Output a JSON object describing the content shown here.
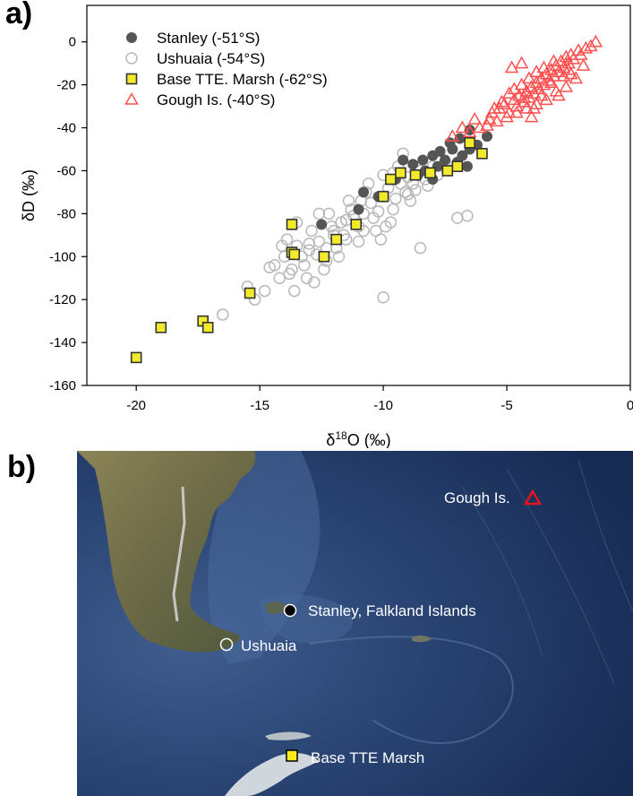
{
  "panels": {
    "a": "a)",
    "b": "b)"
  },
  "chart_data": {
    "type": "scatter",
    "title": "",
    "xlabel": "δ18O (‰)",
    "xlabel_parts": {
      "delta": "δ",
      "sup": "18",
      "rest": "O (‰)"
    },
    "ylabel": "δD (‰)",
    "xlim": [
      -22,
      0
    ],
    "ylim": [
      -160,
      17
    ],
    "xticks": [
      -20,
      -15,
      -10,
      -5,
      0
    ],
    "yticks": [
      -160,
      -140,
      -120,
      -100,
      -80,
      -60,
      -40,
      -20,
      0
    ],
    "grid": false,
    "legend_position": "top-left",
    "series": [
      {
        "name": "Stanley (-51°S)",
        "marker": "filled-circle",
        "color": "#555555",
        "points": [
          [
            -6.5,
            -41
          ],
          [
            -6.9,
            -45
          ],
          [
            -6.2,
            -48
          ],
          [
            -5.8,
            -44
          ],
          [
            -7.2,
            -50
          ],
          [
            -6.8,
            -53
          ],
          [
            -7.5,
            -55
          ],
          [
            -8.0,
            -53
          ],
          [
            -8.4,
            -55
          ],
          [
            -8.8,
            -57
          ],
          [
            -9.2,
            -55
          ],
          [
            -7.8,
            -58
          ],
          [
            -8.3,
            -60
          ],
          [
            -7.0,
            -56
          ],
          [
            -6.5,
            -50
          ],
          [
            -7.3,
            -47
          ],
          [
            -8.6,
            -62
          ],
          [
            -9.5,
            -64
          ],
          [
            -10.2,
            -72
          ],
          [
            -10.8,
            -70
          ],
          [
            -12.5,
            -85
          ],
          [
            -11.0,
            -78
          ],
          [
            -7.7,
            -51
          ],
          [
            -6.6,
            -58
          ],
          [
            -8.0,
            -64
          ]
        ]
      },
      {
        "name": "Ushuaia (-54°S)",
        "marker": "open-circle",
        "color": "#b8b8b8",
        "points": [
          [
            -16.5,
            -127
          ],
          [
            -15.2,
            -120
          ],
          [
            -15.5,
            -114
          ],
          [
            -14.6,
            -105
          ],
          [
            -14.2,
            -110
          ],
          [
            -13.8,
            -108
          ],
          [
            -14.0,
            -100
          ],
          [
            -13.5,
            -95
          ],
          [
            -13.9,
            -92
          ],
          [
            -13.2,
            -104
          ],
          [
            -13.0,
            -97
          ],
          [
            -12.6,
            -93
          ],
          [
            -12.9,
            -88
          ],
          [
            -12.3,
            -96
          ],
          [
            -12.0,
            -90
          ],
          [
            -11.7,
            -84
          ],
          [
            -12.2,
            -80
          ],
          [
            -11.5,
            -83
          ],
          [
            -11.3,
            -78
          ],
          [
            -11.0,
            -86
          ],
          [
            -10.8,
            -80
          ],
          [
            -10.5,
            -75
          ],
          [
            -10.2,
            -79
          ],
          [
            -10.7,
            -70
          ],
          [
            -10.0,
            -72
          ],
          [
            -9.8,
            -68
          ],
          [
            -9.5,
            -73
          ],
          [
            -9.3,
            -66
          ],
          [
            -9.1,
            -70
          ],
          [
            -9.0,
            -63
          ],
          [
            -8.8,
            -66
          ],
          [
            -8.5,
            -60
          ],
          [
            -8.3,
            -64
          ],
          [
            -8.0,
            -58
          ],
          [
            -7.8,
            -62
          ],
          [
            -7.5,
            -56
          ],
          [
            -9.2,
            -52
          ],
          [
            -10.0,
            -62
          ],
          [
            -9.6,
            -78
          ],
          [
            -10.3,
            -88
          ],
          [
            -11.8,
            -100
          ],
          [
            -12.8,
            -112
          ],
          [
            -13.6,
            -116
          ],
          [
            -14.8,
            -116
          ],
          [
            -10.0,
            -119
          ],
          [
            -7.0,
            -82
          ],
          [
            -6.6,
            -81
          ],
          [
            -8.5,
            -96
          ],
          [
            -11.0,
            -93
          ],
          [
            -12.6,
            -80
          ],
          [
            -13.5,
            -84
          ],
          [
            -14.1,
            -95
          ],
          [
            -11.4,
            -74
          ],
          [
            -9.4,
            -58
          ],
          [
            -10.6,
            -66
          ],
          [
            -8.9,
            -74
          ],
          [
            -9.7,
            -84
          ],
          [
            -12.4,
            -106
          ],
          [
            -13.1,
            -110
          ],
          [
            -12.0,
            -88
          ],
          [
            -10.9,
            -74
          ],
          [
            -9.9,
            -86
          ],
          [
            -11.9,
            -96
          ],
          [
            -14.4,
            -104
          ],
          [
            -8.7,
            -69
          ],
          [
            -10.4,
            -82
          ],
          [
            -12.1,
            -86
          ],
          [
            -13.3,
            -100
          ],
          [
            -11.6,
            -90
          ],
          [
            -9.0,
            -71
          ],
          [
            -10.1,
            -92
          ],
          [
            -12.7,
            -99
          ],
          [
            -11.2,
            -81
          ],
          [
            -13.0,
            -94
          ],
          [
            -8.2,
            -67
          ],
          [
            -9.6,
            -61
          ],
          [
            -11.5,
            -92
          ],
          [
            -12.3,
            -102
          ],
          [
            -10.8,
            -88
          ],
          [
            -13.7,
            -106
          ]
        ]
      },
      {
        "name": "Base TTE. Marsh (-62°S)",
        "marker": "square",
        "color": "#f2ea2a",
        "points": [
          [
            -20.0,
            -147
          ],
          [
            -19.0,
            -133
          ],
          [
            -17.3,
            -130
          ],
          [
            -17.1,
            -133
          ],
          [
            -15.4,
            -117
          ],
          [
            -13.7,
            -98
          ],
          [
            -13.7,
            -85
          ],
          [
            -13.6,
            -99
          ],
          [
            -12.4,
            -100
          ],
          [
            -11.9,
            -92
          ],
          [
            -11.1,
            -85
          ],
          [
            -10.0,
            -72
          ],
          [
            -9.7,
            -64
          ],
          [
            -9.3,
            -61
          ],
          [
            -8.7,
            -62
          ],
          [
            -8.1,
            -61
          ],
          [
            -7.4,
            -60
          ],
          [
            -7.0,
            -58
          ],
          [
            -6.5,
            -47
          ],
          [
            -6.0,
            -52
          ]
        ]
      },
      {
        "name": "Gough Is. (-40°S)",
        "marker": "open-triangle",
        "color": "#ff5050",
        "points": [
          [
            -7.2,
            -44
          ],
          [
            -6.8,
            -40
          ],
          [
            -6.5,
            -42
          ],
          [
            -5.7,
            -36
          ],
          [
            -5.6,
            -33
          ],
          [
            -5.3,
            -31
          ],
          [
            -5.1,
            -29
          ],
          [
            -4.9,
            -33
          ],
          [
            -4.7,
            -27
          ],
          [
            -4.6,
            -30
          ],
          [
            -4.5,
            -25
          ],
          [
            -4.3,
            -28
          ],
          [
            -4.2,
            -23
          ],
          [
            -4.1,
            -26
          ],
          [
            -4.0,
            -21
          ],
          [
            -3.9,
            -24
          ],
          [
            -3.8,
            -19
          ],
          [
            -3.7,
            -22
          ],
          [
            -3.6,
            -17
          ],
          [
            -3.5,
            -20
          ],
          [
            -3.4,
            -15
          ],
          [
            -3.3,
            -18
          ],
          [
            -3.2,
            -13
          ],
          [
            -3.1,
            -16
          ],
          [
            -3.0,
            -11
          ],
          [
            -2.9,
            -14
          ],
          [
            -2.8,
            -9
          ],
          [
            -2.7,
            -12
          ],
          [
            -2.6,
            -7
          ],
          [
            -2.5,
            -10
          ],
          [
            -2.4,
            -6
          ],
          [
            -2.3,
            -8
          ],
          [
            -2.1,
            -4
          ],
          [
            -2.0,
            -6
          ],
          [
            -1.8,
            -3
          ],
          [
            -1.6,
            -2
          ],
          [
            -1.4,
            0
          ],
          [
            -4.8,
            -12
          ],
          [
            -4.4,
            -10
          ],
          [
            -2.2,
            -17
          ],
          [
            -2.6,
            -21
          ],
          [
            -3.0,
            -23
          ],
          [
            -3.4,
            -27
          ],
          [
            -3.8,
            -29
          ],
          [
            -4.2,
            -31
          ],
          [
            -4.6,
            -33
          ],
          [
            -5.0,
            -35
          ],
          [
            -5.4,
            -37
          ],
          [
            -5.8,
            -39
          ],
          [
            -6.1,
            -40
          ],
          [
            -6.3,
            -36
          ],
          [
            -4.9,
            -24
          ],
          [
            -3.5,
            -12
          ],
          [
            -2.9,
            -25
          ],
          [
            -3.9,
            -31
          ],
          [
            -4.4,
            -20
          ],
          [
            -3.2,
            -19
          ],
          [
            -2.4,
            -15
          ],
          [
            -1.9,
            -11
          ],
          [
            -4.1,
            -17
          ],
          [
            -4.7,
            -22
          ],
          [
            -5.2,
            -28
          ],
          [
            -3.6,
            -25
          ],
          [
            -2.7,
            -16
          ],
          [
            -3.8,
            -14
          ],
          [
            -4.3,
            -26
          ],
          [
            -5.5,
            -31
          ],
          [
            -3.1,
            -9
          ],
          [
            -2.5,
            -13
          ],
          [
            -4.0,
            -35
          ]
        ]
      }
    ]
  },
  "map": {
    "sites": [
      {
        "name": "Gough Is.",
        "marker": "open-triangle",
        "color": "#e8141c"
      },
      {
        "name": "Stanley, Falkland Islands",
        "marker": "filled-circle",
        "color": "#000000"
      },
      {
        "name": "Ushuaia",
        "marker": "open-circle",
        "color": "#ffffff"
      },
      {
        "name": "Base TTE Marsh",
        "marker": "square",
        "color": "#f5ec1e"
      }
    ]
  },
  "colors": {
    "ocean_deep": "#1b2f59",
    "ocean_shelf": "#3a5686",
    "land": "#6e6a4c",
    "ice": "#d8dde2"
  }
}
